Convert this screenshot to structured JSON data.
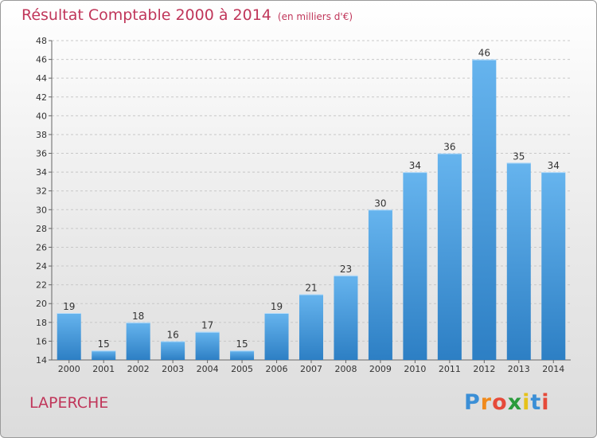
{
  "header": {
    "title": "Résultat Comptable 2000 à 2014",
    "subtitle": "(en milliers d'€)"
  },
  "footer": {
    "place": "LAPERCHE",
    "logo_letters": [
      "P",
      "r",
      "o",
      "x",
      "i",
      "t",
      "i"
    ],
    "logo_colors": [
      "#3b8fd6",
      "#f08a1c",
      "#e64a3a",
      "#2a9b3c",
      "#e6c21a",
      "#3b8fd6",
      "#e64a3a"
    ]
  },
  "colors": {
    "title": "#c0365a",
    "bar_light": "#66b4ee",
    "bar_dark": "#2d7fc4",
    "gridline": "#c8c8c8",
    "axis": "#666666"
  },
  "chart_data": {
    "type": "bar",
    "title": "Résultat Comptable 2000 à 2014",
    "subtitle": "(en milliers d'€)",
    "categories": [
      "2000",
      "2001",
      "2002",
      "2003",
      "2004",
      "2005",
      "2006",
      "2007",
      "2008",
      "2009",
      "2010",
      "2011",
      "2012",
      "2013",
      "2014"
    ],
    "values": [
      19,
      15,
      18,
      16,
      17,
      15,
      19,
      21,
      23,
      30,
      34,
      36,
      46,
      35,
      34
    ],
    "data_labels": [
      "19",
      "15",
      "18",
      "16",
      "17",
      "15",
      "19",
      "21",
      "23",
      "30",
      "34",
      "36",
      "46",
      "35",
      "34"
    ],
    "ylim": [
      14,
      48
    ],
    "yticks": [
      "14",
      "16",
      "18",
      "20",
      "22",
      "24",
      "26",
      "28",
      "30",
      "32",
      "34",
      "36",
      "38",
      "40",
      "42",
      "44",
      "46",
      "48"
    ],
    "grid": true,
    "legend": "none",
    "xlabel": "",
    "ylabel": ""
  }
}
